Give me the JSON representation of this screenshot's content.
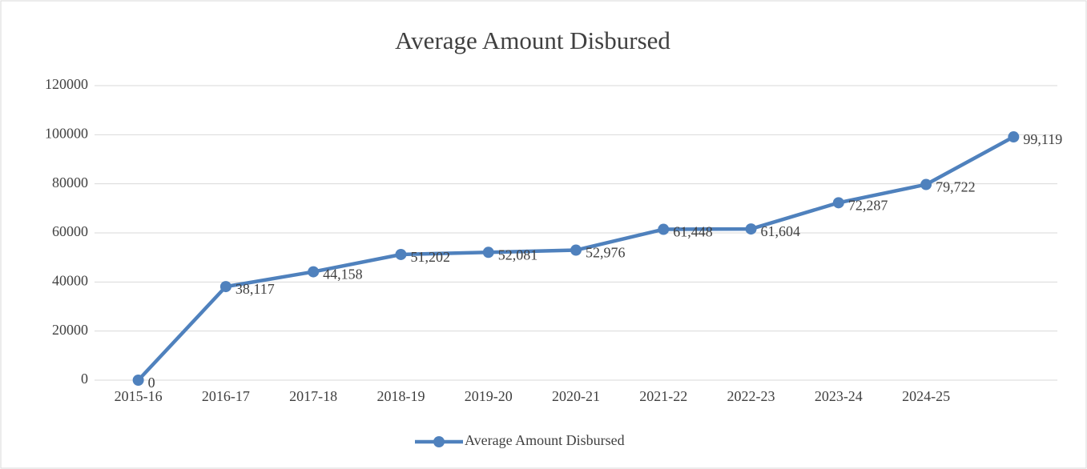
{
  "chart_data": {
    "type": "line",
    "title": "Average Amount Disbursed",
    "categories": [
      "2015-16",
      "2016-17",
      "2017-18",
      "2018-19",
      "2019-20",
      "2020-21",
      "2021-22",
      "2022-23",
      "2023-24",
      "2024-25",
      null
    ],
    "series": [
      {
        "name": "Average Amount Disbursed",
        "color": "#4f81bd",
        "values": [
          0,
          38117,
          44158,
          51202,
          52081,
          52976,
          61448,
          61604,
          72287,
          79722,
          99119
        ],
        "value_labels": [
          "0",
          "38,117",
          "44,158",
          "51,202",
          "52,081",
          "52,976",
          "61,448",
          "61,604",
          "72,287",
          "79,722",
          "99,119"
        ]
      }
    ],
    "ylim": [
      0,
      120000
    ],
    "yticks": [
      0,
      20000,
      40000,
      60000,
      80000,
      100000,
      120000
    ],
    "grid": true,
    "legend": "bottom"
  }
}
